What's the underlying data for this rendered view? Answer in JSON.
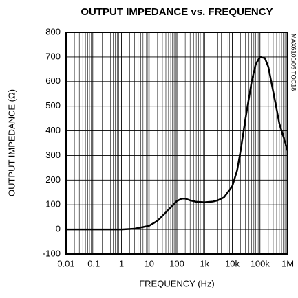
{
  "chart_data": {
    "type": "line",
    "title": "OUTPUT IMPEDANCE vs. FREQUENCY",
    "x_label": "FREQUENCY (Hz)",
    "y_label": "OUTPUT IMPEDANCE (Ω)",
    "note": "MAX6100/05 TOC18",
    "x": [
      0.01,
      0.1,
      1,
      3,
      10,
      20,
      50,
      100,
      150,
      200,
      300,
      500,
      1000,
      2000,
      3000,
      5000,
      10000,
      15000,
      20000,
      30000,
      50000,
      70000,
      100000,
      150000,
      200000,
      300000,
      500000,
      1000000
    ],
    "values": [
      0,
      0,
      0,
      3,
      15,
      35,
      80,
      115,
      125,
      125,
      118,
      112,
      110,
      113,
      118,
      130,
      175,
      240,
      320,
      450,
      600,
      670,
      700,
      695,
      660,
      560,
      430,
      320
    ],
    "color": "#000000",
    "xlog": true,
    "xlim": [
      0.01,
      1000000
    ],
    "xticks": [
      0.01,
      0.1,
      1,
      10,
      100,
      {
        "value": 1000,
        "label": "1k"
      },
      {
        "value": 10000,
        "label": "10k"
      },
      {
        "value": 100000,
        "label": "100k"
      },
      {
        "value": 1000000,
        "label": "1M"
      }
    ],
    "ylim": [
      -100,
      800
    ],
    "yticks": [
      -100,
      0,
      100,
      200,
      300,
      400,
      500,
      600,
      700,
      800
    ],
    "grid": true,
    "minor_grid": true
  }
}
